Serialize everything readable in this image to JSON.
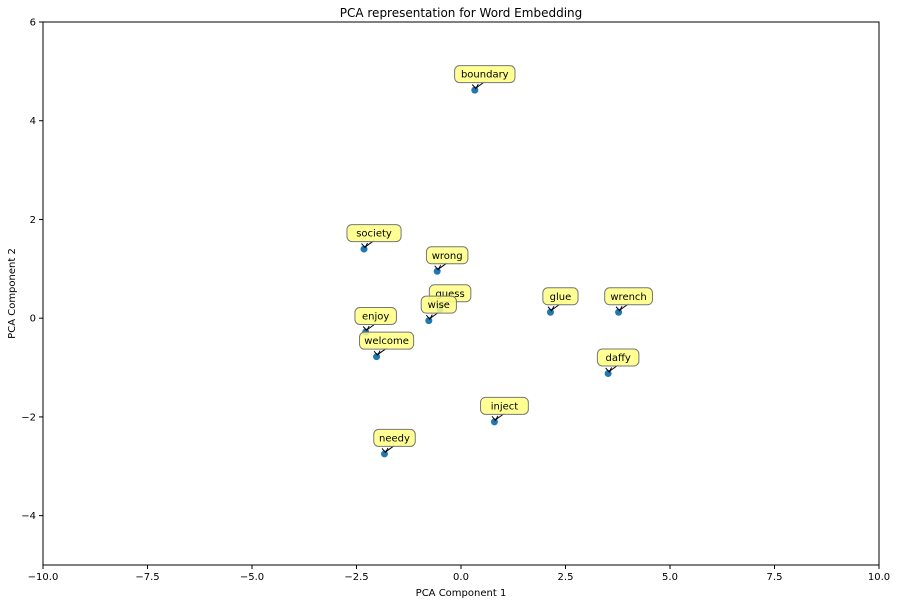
{
  "chart_data": {
    "type": "scatter",
    "title": "PCA representation for Word Embedding",
    "xlabel": "PCA Component 1",
    "ylabel": "PCA Component 2",
    "xlim": [
      -10,
      10
    ],
    "ylim": [
      -5,
      6
    ],
    "xticks": [
      -10,
      -7.5,
      -5,
      -2.5,
      0,
      2.5,
      5,
      7.5,
      10
    ],
    "xtick_labels": [
      "−10.0",
      "−7.5",
      "−5.0",
      "−2.5",
      "0.0",
      "2.5",
      "5.0",
      "7.5",
      "10.0"
    ],
    "yticks": [
      -4,
      -2,
      0,
      2,
      4,
      6
    ],
    "ytick_labels": [
      "−4",
      "−2",
      "0",
      "2",
      "4",
      "6"
    ],
    "grid": false,
    "point_color": "#1f77b4",
    "annotation_fill": "#ffff80",
    "points": [
      {
        "label": "boundary",
        "x": 0.33,
        "y": 4.62
      },
      {
        "label": "society",
        "x": -2.32,
        "y": 1.4
      },
      {
        "label": "wrong",
        "x": -0.57,
        "y": 0.95
      },
      {
        "label": "guess",
        "x": -0.5,
        "y": 0.18
      },
      {
        "label": "wise",
        "x": -0.77,
        "y": -0.05
      },
      {
        "label": "enjoy",
        "x": -2.28,
        "y": -0.28
      },
      {
        "label": "welcome",
        "x": -2.02,
        "y": -0.78
      },
      {
        "label": "glue",
        "x": 2.14,
        "y": 0.12
      },
      {
        "label": "wrench",
        "x": 3.77,
        "y": 0.12
      },
      {
        "label": "daffy",
        "x": 3.52,
        "y": -1.12
      },
      {
        "label": "inject",
        "x": 0.8,
        "y": -2.1
      },
      {
        "label": "needy",
        "x": -1.83,
        "y": -2.75
      }
    ]
  }
}
